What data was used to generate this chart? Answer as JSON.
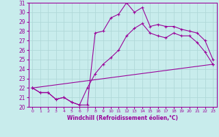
{
  "xlabel": "Windchill (Refroidissement éolien,°C)",
  "bg_color": "#c8ecec",
  "line_color": "#990099",
  "grid_color": "#b0d8d8",
  "xlim": [
    -0.5,
    23.5
  ],
  "ylim": [
    20,
    31
  ],
  "xticks": [
    0,
    1,
    2,
    3,
    4,
    5,
    6,
    7,
    8,
    9,
    10,
    11,
    12,
    13,
    14,
    15,
    16,
    17,
    18,
    19,
    20,
    21,
    22,
    23
  ],
  "yticks": [
    20,
    21,
    22,
    23,
    24,
    25,
    26,
    27,
    28,
    29,
    30,
    31
  ],
  "line1_x": [
    0,
    1,
    2,
    3,
    4,
    5,
    6,
    7,
    8,
    9,
    10,
    11,
    12,
    13,
    14,
    15,
    16,
    17,
    18,
    19,
    20,
    21,
    22,
    23
  ],
  "line1_y": [
    22.0,
    21.5,
    21.5,
    20.8,
    21.0,
    20.5,
    20.2,
    20.2,
    27.8,
    28.0,
    29.4,
    29.8,
    31.0,
    30.0,
    30.5,
    28.5,
    28.7,
    28.5,
    28.5,
    28.2,
    28.0,
    27.8,
    27.0,
    25.0
  ],
  "line2_x": [
    0,
    1,
    2,
    3,
    4,
    5,
    6,
    7,
    8,
    9,
    10,
    11,
    12,
    13,
    14,
    15,
    16,
    17,
    18,
    19,
    20,
    21,
    22,
    23
  ],
  "line2_y": [
    22.0,
    21.5,
    21.5,
    20.8,
    21.0,
    20.5,
    20.2,
    22.0,
    23.5,
    24.5,
    25.2,
    26.0,
    27.5,
    28.3,
    28.8,
    27.8,
    27.5,
    27.3,
    27.8,
    27.5,
    27.5,
    26.8,
    25.8,
    24.5
  ],
  "line3_x": [
    0,
    23
  ],
  "line3_y": [
    22.0,
    24.5
  ]
}
